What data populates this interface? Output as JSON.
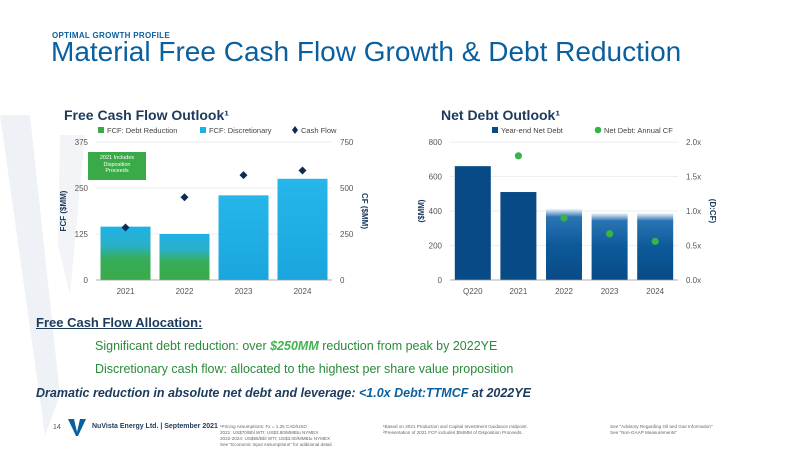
{
  "header": {
    "kicker": "OPTIMAL GROWTH PROFILE",
    "title": "Material Free Cash Flow Growth & Debt Reduction"
  },
  "colors": {
    "accent_blue": "#0a5f9e",
    "fcf_green": "#3aaa48",
    "fcf_blue": "#1fb1e6",
    "debt_navy": "#084a86",
    "marker_navy": "#0d2c54",
    "marker_green": "#37b34a"
  },
  "chart_data": [
    {
      "type": "bar",
      "title": "Free Cash Flow Outlook¹",
      "categories": [
        "2021",
        "2022",
        "2023",
        "2024"
      ],
      "series": [
        {
          "name": "FCF: Debt Reduction",
          "values": [
            145,
            125,
            0,
            0
          ],
          "axis": "left"
        },
        {
          "name": "FCF: Discretionary",
          "values": [
            0,
            0,
            230,
            275
          ],
          "axis": "left"
        },
        {
          "name": "Cash Flow",
          "values": [
            285,
            450,
            570,
            595
          ],
          "axis": "right",
          "marker": "diamond"
        }
      ],
      "ylabel": "FCF ($MM)",
      "y2label": "CF ($MM)",
      "ylim": [
        0,
        375
      ],
      "y2lim": [
        0,
        750
      ],
      "yticks": [
        "0",
        "125",
        "250",
        "375"
      ],
      "y2ticks": [
        "0",
        "250",
        "500",
        "750"
      ],
      "annotation": "2021 Includes\nDisposition\nProceeds",
      "legend": "top"
    },
    {
      "type": "bar",
      "title": "Net Debt Outlook¹",
      "categories": [
        "Q220",
        "2021",
        "2022",
        "2023",
        "2024"
      ],
      "series": [
        {
          "name": "Year-end Net Debt",
          "values": [
            660,
            510,
            415,
            390,
            390
          ],
          "axis": "left"
        },
        {
          "name": "Net Debt: Annual CF",
          "values": [
            null,
            1.8,
            0.9,
            0.67,
            0.56
          ],
          "axis": "right",
          "marker": "circle"
        }
      ],
      "ylabel": "($MM)",
      "y2label": "(D:CF)",
      "ylim": [
        0,
        800
      ],
      "y2lim": [
        0,
        2.0
      ],
      "yticks": [
        "0",
        "200",
        "400",
        "600",
        "800"
      ],
      "y2ticks": [
        "0.0x",
        "0.5x",
        "1.0x",
        "1.5x",
        "2.0x"
      ],
      "legend": "top"
    }
  ],
  "allocation": {
    "heading": "Free Cash Flow Allocation:",
    "bullet1_pre": "Significant debt reduction: over ",
    "bullet1_hl": "$250MM",
    "bullet1_post": " reduction from peak by 2022YE",
    "bullet2": "Discretionary cash flow: allocated to the highest per share value proposition",
    "bullet3_pre": "Dramatic reduction in absolute net debt and leverage: ",
    "bullet3_hl": "<1.0x Debt:TTMCF",
    "bullet3_post": " at 2022YE"
  },
  "footer": {
    "page": "14",
    "company": "NuVista Energy Ltd. | September 2021",
    "note1": "¹Pricing Assumptions:   Fx = 1.25 CAD/USD\n2021: US$70/Bbl WTI; US$3.80/MMBtu NYMEX\n2022-2024: US$65/Bbl WTI; US$3.00/MMBtu NYMEX\nSee \"Economic Input Assumptions\" for additional detail.",
    "note2": "¹Based on 2021 Production and Capital Investment Guidance midpoint.\n²Presentation of 2021 FCF includes $94MM of Disposition Proceeds.",
    "note3": "See \"Advisory Regarding Oil and Gas Information\"\nSee \"Non-GAAP Measurements\""
  }
}
